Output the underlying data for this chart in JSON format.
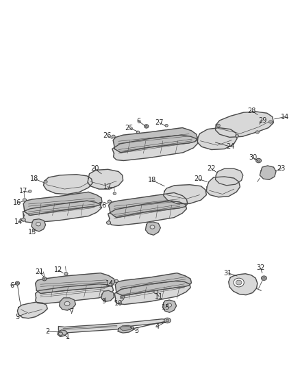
{
  "bg_color": "#ffffff",
  "line_color": "#4a4a4a",
  "fill_light": "#d8d8d8",
  "fill_mid": "#c0c0c0",
  "fill_dark": "#a8a8a8",
  "label_color": "#2a2a2a",
  "figsize": [
    4.38,
    5.33
  ],
  "dpi": 100,
  "label_fs": 7.0
}
